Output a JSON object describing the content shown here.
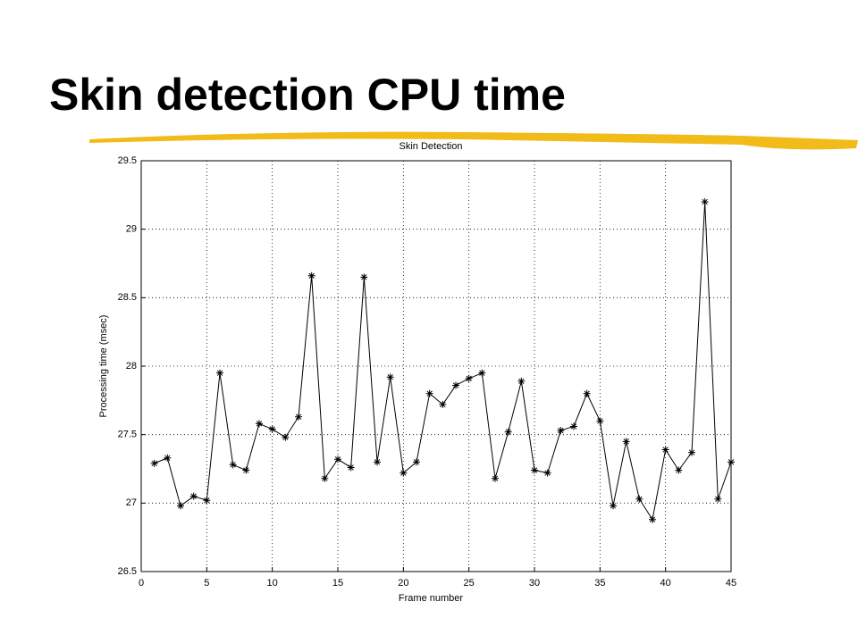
{
  "slide": {
    "title": "Skin detection CPU time"
  },
  "chart_data": {
    "type": "line",
    "title": "Skin Detection",
    "x_label": "Frame number",
    "y_label": "Processing time (msec)",
    "x": [
      1,
      2,
      3,
      4,
      5,
      6,
      7,
      8,
      9,
      10,
      11,
      12,
      13,
      14,
      15,
      16,
      17,
      18,
      19,
      20,
      21,
      22,
      23,
      24,
      25,
      26,
      27,
      28,
      29,
      30,
      31,
      32,
      33,
      34,
      35,
      36,
      37,
      38,
      39,
      40,
      41,
      42,
      43,
      44,
      45
    ],
    "series": [
      {
        "color": "#000000",
        "marker": "*",
        "values": [
          27.29,
          27.33,
          26.98,
          27.05,
          27.02,
          27.95,
          27.28,
          27.24,
          27.58,
          27.54,
          27.48,
          27.63,
          28.66,
          27.18,
          27.32,
          27.26,
          28.65,
          27.3,
          27.92,
          27.22,
          27.3,
          27.8,
          27.72,
          27.86,
          27.91,
          27.95,
          27.18,
          27.52,
          27.89,
          27.24,
          27.22,
          27.53,
          27.56,
          27.8,
          27.6,
          26.98,
          27.45,
          27.03,
          26.88,
          27.39,
          27.24,
          27.37,
          29.2,
          27.03,
          27.3
        ]
      }
    ],
    "xlim": [
      0,
      45
    ],
    "xticks": [
      0,
      5,
      10,
      15,
      20,
      25,
      30,
      35,
      40,
      45
    ],
    "ylim": [
      26.5,
      29.5
    ],
    "yticks": [
      26.5,
      27,
      27.5,
      28,
      28.5,
      29,
      29.5
    ],
    "grid": true
  }
}
